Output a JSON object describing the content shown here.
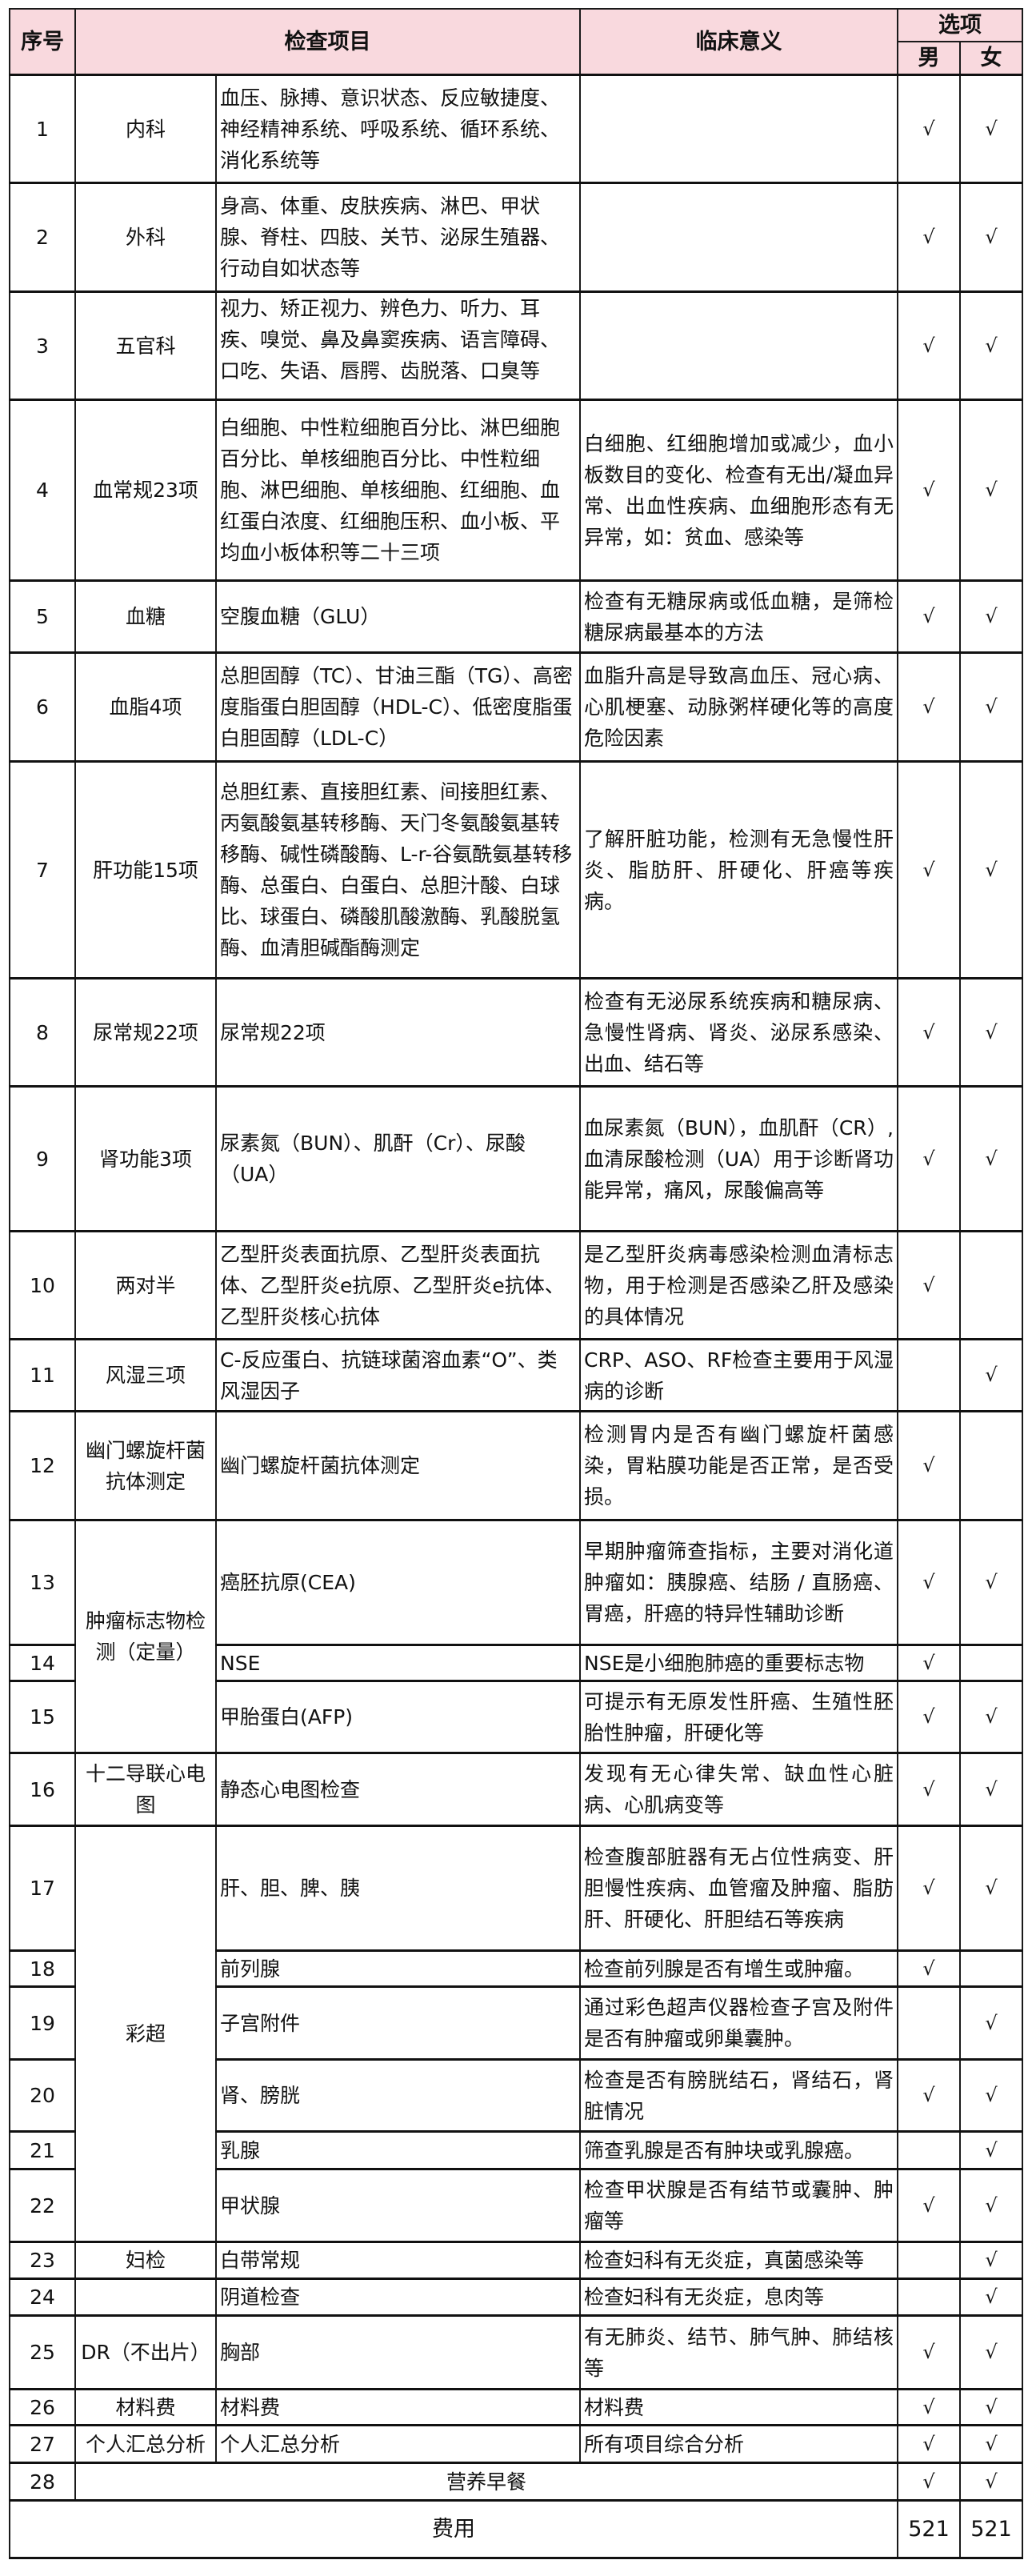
{
  "header": {
    "no": "序号",
    "item": "检查项目",
    "meaning": "临床意义",
    "options": "选项",
    "male": "男",
    "female": "女"
  },
  "check_mark": "√",
  "rows": [
    {
      "no": "1",
      "category": "内科",
      "category_span": 1,
      "items": "血压、脉搏、意识状态、反应敏捷度、神经精神系统、呼吸系统、循环系统、消化系统等",
      "meaning": "",
      "male": true,
      "female": true
    },
    {
      "no": "2",
      "category": "外科",
      "category_span": 1,
      "items": "身高、体重、皮肤疾病、淋巴、甲状腺、脊柱、四肢、关节、泌尿生殖器、行动自如状态等",
      "meaning": "",
      "male": true,
      "female": true
    },
    {
      "no": "3",
      "category": "五官科",
      "category_span": 1,
      "items": "视力、矫正视力、辨色力、听力、耳疾、嗅觉、鼻及鼻窦疾病、语言障碍、口吃、失语、唇腭、齿脱落、口臭等",
      "meaning": "",
      "male": true,
      "female": true
    },
    {
      "no": "4",
      "category": "血常规23项",
      "category_span": 1,
      "items": "白细胞、中性粒细胞百分比、淋巴细胞百分比、单核细胞百分比、中性粒细胞、淋巴细胞、单核细胞、红细胞、血红蛋白浓度、红细胞压积、血小板、平均血小板体积等二十三项",
      "meaning": "白细胞、红细胞增加或减少，血小板数目的变化、检查有无出/凝血异常、出血性疾病、血细胞形态有无异常，如：贫血、感染等",
      "male": true,
      "female": true
    },
    {
      "no": "5",
      "category": "血糖",
      "category_span": 1,
      "items": "空腹血糖（GLU）",
      "meaning": "检查有无糖尿病或低血糖，是筛检糖尿病最基本的方法",
      "male": true,
      "female": true
    },
    {
      "no": "6",
      "category": "血脂4项",
      "category_span": 1,
      "items": "总胆固醇（TC）、甘油三酯（TG）、高密度脂蛋白胆固醇（HDL-C）、低密度脂蛋白胆固醇（LDL-C）",
      "meaning": "血脂升高是导致高血压、冠心病、心肌梗塞、动脉粥样硬化等的高度危险因素",
      "male": true,
      "female": true
    },
    {
      "no": "7",
      "category": "肝功能15项",
      "category_span": 1,
      "items": "总胆红素、直接胆红素、间接胆红素、丙氨酸氨基转移酶、天门冬氨酸氨基转移酶、碱性磷酸酶、L-r-谷氨酰氨基转移酶、总蛋白、白蛋白、总胆汁酸、白球比、球蛋白、磷酸肌酸激酶、乳酸脱氢酶、血清胆碱酯酶测定",
      "meaning": "了解肝脏功能，检测有无急慢性肝炎、脂肪肝、肝硬化、肝癌等疾病。",
      "male": true,
      "female": true
    },
    {
      "no": "8",
      "category": "尿常规22项",
      "category_span": 1,
      "items": "尿常规22项",
      "meaning": "检查有无泌尿系统疾病和糖尿病、急慢性肾病、肾炎、泌尿系感染、出血、结石等",
      "male": true,
      "female": true
    },
    {
      "no": "9",
      "category": "肾功能3项",
      "category_span": 1,
      "items": "尿素氮（BUN）、肌酐（Cr）、尿酸（UA）",
      "meaning": "血尿素氮（BUN），血肌酐（CR）,血清尿酸检测（UA）用于诊断肾功能异常，痛风，尿酸偏高等",
      "male": true,
      "female": true
    },
    {
      "no": "10",
      "category": "两对半",
      "category_span": 1,
      "items": "乙型肝炎表面抗原、乙型肝炎表面抗体、乙型肝炎e抗原、乙型肝炎e抗体、乙型肝炎核心抗体",
      "meaning": "是乙型肝炎病毒感染检测血清标志物，用于检测是否感染乙肝及感染的具体情况",
      "male": true,
      "female": false
    },
    {
      "no": "11",
      "category": "风湿三项",
      "category_span": 1,
      "items": " C-反应蛋白、抗链球菌溶血素“O”、类风湿因子",
      "meaning": "CRP、ASO、RF检查主要用于风湿病的诊断",
      "male": false,
      "female": true
    },
    {
      "no": "12",
      "category": "幽门螺旋杆菌抗体测定",
      "category_span": 1,
      "items": "幽门螺旋杆菌抗体测定",
      "meaning": "检测胃内是否有幽门螺旋杆菌感染，胃粘膜功能是否正常，是否受损。",
      "male": true,
      "female": false
    },
    {
      "no": "13",
      "category": "肿瘤标志物检测（定量）",
      "category_span": 3,
      "items": "癌胚抗原(CEA)",
      "meaning": "早期肿瘤筛查指标，主要对消化道肿瘤如：胰腺癌、结肠 / 直肠癌、胃癌，肝癌的特异性辅助诊断",
      "male": true,
      "female": true
    },
    {
      "no": "14",
      "category": null,
      "items": "NSE",
      "meaning": "NSE是小细胞肺癌的重要标志物",
      "male": true,
      "female": false
    },
    {
      "no": "15",
      "category": null,
      "items": "甲胎蛋白(AFP)",
      "meaning": "可提示有无原发性肝癌、生殖性胚胎性肿瘤，肝硬化等",
      "male": true,
      "female": true
    },
    {
      "no": "16",
      "category": "十二导联心电图",
      "category_span": 1,
      "items": "静态心电图检查",
      "meaning": "发现有无心律失常、缺血性心脏病、心肌病变等",
      "male": true,
      "female": true
    },
    {
      "no": "17",
      "category": "彩超",
      "category_span": 6,
      "items": "肝、胆、脾、胰",
      "meaning": "检查腹部脏器有无占位性病变、肝胆慢性疾病、血管瘤及肿瘤、脂肪肝、肝硬化、肝胆结石等疾病",
      "male": true,
      "female": true
    },
    {
      "no": "18",
      "category": null,
      "items": "前列腺",
      "meaning": "检查前列腺是否有增生或肿瘤。",
      "male": true,
      "female": false
    },
    {
      "no": "19",
      "category": null,
      "items": "子宫附件",
      "meaning": "通过彩色超声仪器检查子宫及附件是否有肿瘤或卵巢囊肿。",
      "male": false,
      "female": true
    },
    {
      "no": "20",
      "category": null,
      "items": "肾、膀胱",
      "meaning": "检查是否有膀胱结石，肾结石，肾脏情况",
      "male": true,
      "female": true
    },
    {
      "no": "21",
      "category": null,
      "items": "乳腺",
      "meaning": "筛查乳腺是否有肿块或乳腺癌。",
      "male": false,
      "female": true
    },
    {
      "no": "22",
      "category": null,
      "items": "甲状腺",
      "meaning": "检查甲状腺是否有结节或囊肿、肿瘤等",
      "male": true,
      "female": true
    },
    {
      "no": "23",
      "category": "妇检",
      "category_span": 1,
      "items": "白带常规",
      "meaning": "检查妇科有无炎症，真菌感染等",
      "male": false,
      "female": true
    },
    {
      "no": "24",
      "category": "",
      "category_span": 1,
      "items": "阴道检查",
      "meaning": "检查妇科有无炎症，息肉等",
      "male": false,
      "female": true
    },
    {
      "no": "25",
      "category": "DR（不出片）",
      "category_span": 1,
      "items": "胸部",
      "meaning": "有无肺炎、结节、肺气肿、肺结核等",
      "male": true,
      "female": true
    },
    {
      "no": "26",
      "category": "材料费",
      "category_span": 1,
      "items": "材料费",
      "meaning": "材料费",
      "male": true,
      "female": true
    },
    {
      "no": "27",
      "category": "个人汇总分析",
      "category_span": 1,
      "items": "个人汇总分析",
      "meaning": "所有项目综合分析",
      "male": true,
      "female": true
    },
    {
      "no": "28",
      "merged": "营养早餐",
      "male": true,
      "female": true
    }
  ],
  "fee": {
    "label": "费用",
    "male": "521",
    "female": "521"
  },
  "colors": {
    "header_bg": "#f9d9de",
    "border": "#1a1a1a"
  }
}
